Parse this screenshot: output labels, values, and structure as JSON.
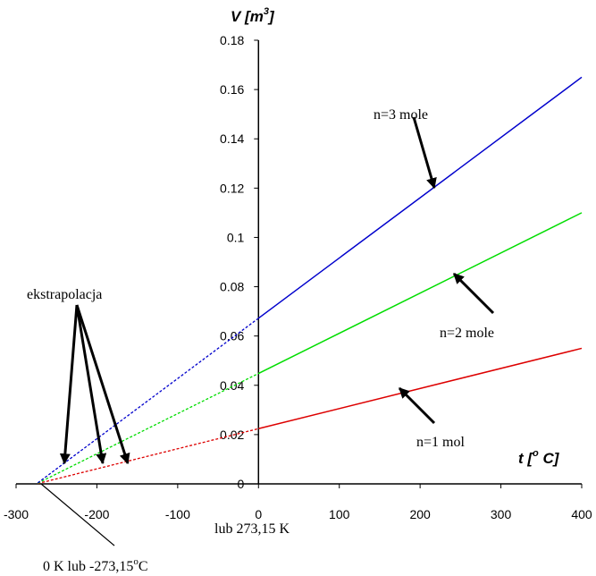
{
  "chart_data": {
    "type": "line",
    "xlabel": {
      "main": "t [",
      "sup": "o",
      "rest": " C]"
    },
    "ylabel": {
      "main": "V [m",
      "sup": "3",
      "rest": "]"
    },
    "xlim": [
      -300,
      400
    ],
    "ylim": [
      0,
      0.18
    ],
    "x_ticks": [
      -300,
      -200,
      -100,
      0,
      100,
      200,
      300,
      400
    ],
    "x_tick_labels": [
      "-300",
      "-200",
      "-100",
      "0",
      "100",
      "200",
      "300",
      "400"
    ],
    "y_ticks": [
      0,
      0.02,
      0.04,
      0.06,
      0.08,
      0.1,
      0.12,
      0.14,
      0.16,
      0.18
    ],
    "y_tick_labels": [
      "0",
      "0.02",
      "0.04",
      "0.06",
      "0.08",
      "0.1",
      "0.12",
      "0.14",
      "0.16",
      "0.18"
    ],
    "absolute_zero": -273.15,
    "series": [
      {
        "name": "n=1 mol",
        "color": "#dd0000",
        "x_start": 0,
        "x_end": 400,
        "values": [
          0.0224,
          0.055
        ]
      },
      {
        "name": "n=2 mole",
        "color": "#00dd00",
        "x_start": 0,
        "x_end": 400,
        "values": [
          0.0448,
          0.11
        ]
      },
      {
        "name": "n=3 mole",
        "color": "#0000cc",
        "x_start": 0,
        "x_end": 400,
        "values": [
          0.0672,
          0.165
        ]
      }
    ],
    "annotations": {
      "n3": "n=3 mole",
      "n2": "n=2 mole",
      "n1": "n=1 mol",
      "extrapolation": "ekstrapolacja",
      "kelvin": "lub 273,15 K",
      "zero_main": "0 K lub -273,15",
      "zero_sup": "o",
      "zero_unit": "C"
    }
  }
}
